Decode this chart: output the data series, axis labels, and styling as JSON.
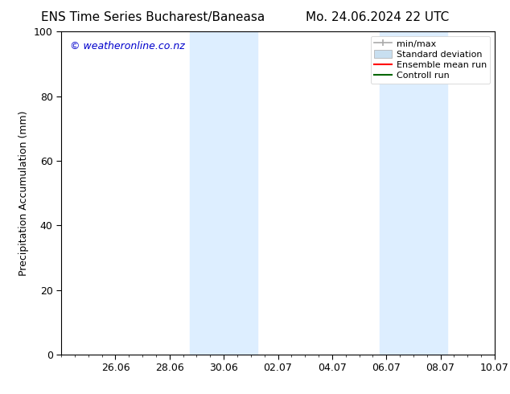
{
  "title_left": "ENS Time Series Bucharest/Baneasa",
  "title_right": "Mo. 24.06.2024 22 UTC",
  "ylabel": "Precipitation Accumulation (mm)",
  "ylim": [
    0,
    100
  ],
  "yticks": [
    0,
    20,
    40,
    60,
    80,
    100
  ],
  "xtick_labels": [
    "26.06",
    "28.06",
    "30.06",
    "02.07",
    "04.07",
    "06.07",
    "08.07",
    "10.07"
  ],
  "xtick_positions": [
    2,
    4,
    6,
    8,
    10,
    12,
    14,
    16
  ],
  "x_min": 0,
  "x_max": 16,
  "shade_regions": [
    {
      "x_start": 4.75,
      "x_end": 7.25
    },
    {
      "x_start": 11.75,
      "x_end": 14.25
    }
  ],
  "bg_color": "#ffffff",
  "shade_color": "#ddeeff",
  "watermark_text": "© weatheronline.co.nz",
  "watermark_color": "#0000cc",
  "legend_items": [
    {
      "label": "min/max",
      "color": "#aaaaaa",
      "lw": 1.5
    },
    {
      "label": "Standard deviation",
      "color": "#c8dff0",
      "lw": 6
    },
    {
      "label": "Ensemble mean run",
      "color": "#ff0000",
      "lw": 1.5
    },
    {
      "label": "Controll run",
      "color": "#006600",
      "lw": 1.5
    }
  ],
  "title_fontsize": 11,
  "axis_fontsize": 9,
  "tick_fontsize": 9,
  "watermark_fontsize": 9,
  "legend_fontsize": 8
}
